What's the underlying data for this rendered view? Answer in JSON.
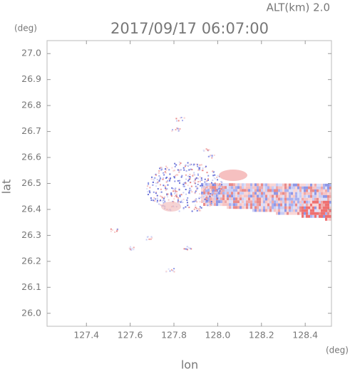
{
  "chart_data": {
    "type": "heatmap",
    "title": "2017/09/17 06:07:00",
    "subtitle": "ALT(km) 2.0",
    "x_label": "lon",
    "y_label": "lat",
    "x_unit": "(deg)",
    "y_unit": "(deg)",
    "xlim": [
      127.22,
      128.52
    ],
    "xticks": [
      127.4,
      127.6,
      127.8,
      {
        "value": 128.0,
        "label": "128.0"
      },
      128.2,
      128.4
    ],
    "ylim": [
      25.95,
      27.05
    ],
    "yticks": [
      {
        "value": 26.0,
        "label": "26.0"
      },
      26.1,
      26.2,
      26.3,
      26.4,
      26.5,
      26.6,
      26.7,
      26.8,
      26.9,
      {
        "value": 27.0,
        "label": "27.0"
      }
    ]
  }
}
